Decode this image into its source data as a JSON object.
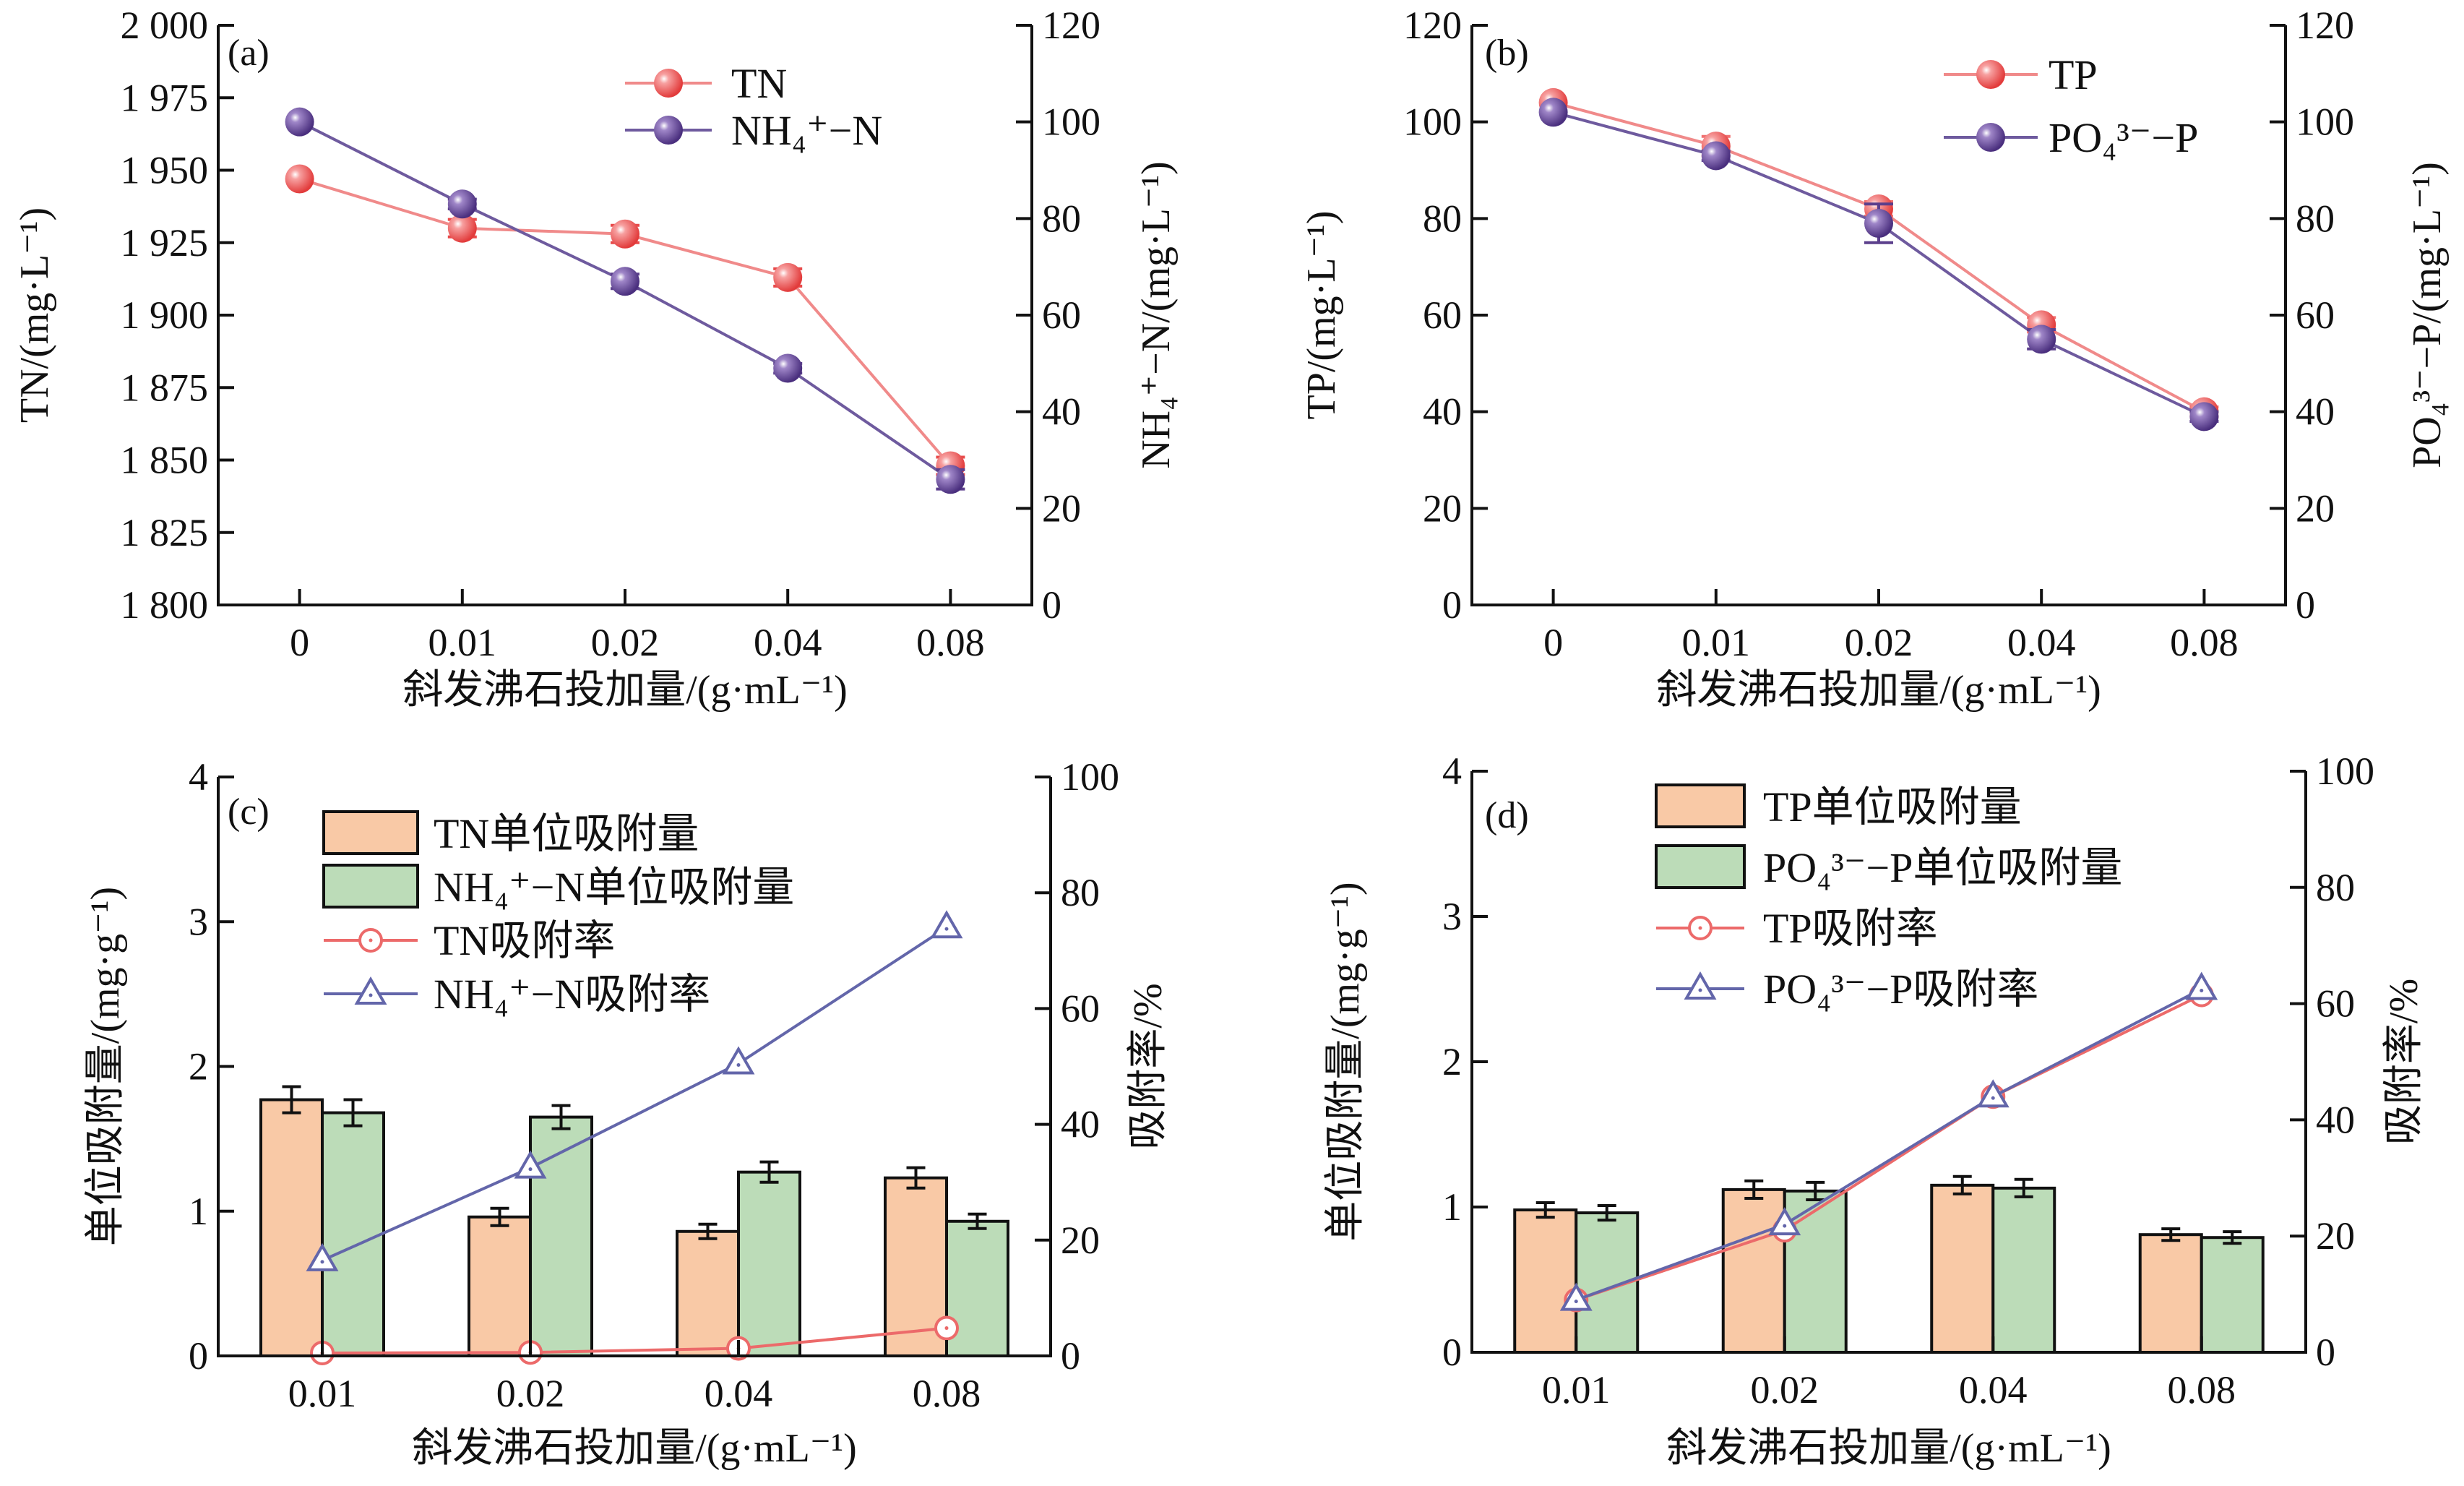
{
  "chart_data": [
    {
      "type": "line",
      "panel_label": "(a)",
      "xlabel": "斜发沸石投加量/(g·mL⁻¹)",
      "categories": [
        "0",
        "0.01",
        "0.02",
        "0.04",
        "0.08"
      ],
      "left_axis": {
        "label": "TN/(mg·L⁻¹)",
        "range": [
          1800,
          2000
        ],
        "ticks": [
          1800,
          1825,
          1850,
          1875,
          1900,
          1925,
          1950,
          1975,
          2000
        ],
        "tick_labels": [
          "1 800",
          "1 825",
          "1 850",
          "1 875",
          "1 900",
          "1 925",
          "1 950",
          "1 975",
          "2 000"
        ]
      },
      "right_axis": {
        "label": "NH₄⁺−N/(mg·L⁻¹)",
        "range": [
          0,
          120
        ],
        "ticks": [
          0,
          20,
          40,
          60,
          80,
          100,
          120
        ],
        "tick_labels": [
          "0",
          "20",
          "40",
          "60",
          "80",
          "100",
          "120"
        ]
      },
      "legend_position": "top-right",
      "series": [
        {
          "name": "TN",
          "kind": "line",
          "marker": "sphere",
          "axis": "left",
          "color": "#f08a8a",
          "marker_color": "#e84a4a",
          "values": [
            1947,
            1930,
            1928,
            1913,
            1848
          ],
          "errors": [
            0,
            3,
            3,
            3,
            3
          ]
        },
        {
          "name": "NH₄⁺−N",
          "kind": "line",
          "marker": "sphere",
          "axis": "right",
          "color": "#6e5a9e",
          "marker_color": "#5b3f8c",
          "values": [
            100,
            83,
            67,
            49,
            26
          ],
          "errors": [
            0,
            1,
            1.5,
            1,
            2
          ]
        }
      ]
    },
    {
      "type": "line",
      "panel_label": "(b)",
      "xlabel": "斜发沸石投加量/(g·mL⁻¹)",
      "categories": [
        "0",
        "0.01",
        "0.02",
        "0.04",
        "0.08"
      ],
      "left_axis": {
        "label": "TP/(mg·L⁻¹)",
        "range": [
          0,
          120
        ],
        "ticks": [
          0,
          20,
          40,
          60,
          80,
          100,
          120
        ],
        "tick_labels": [
          "0",
          "20",
          "40",
          "60",
          "80",
          "100",
          "120"
        ]
      },
      "right_axis": {
        "label": "PO₄³⁻−P/(mg·L⁻¹)",
        "range": [
          0,
          120
        ],
        "ticks": [
          0,
          20,
          40,
          60,
          80,
          100,
          120
        ],
        "tick_labels": [
          "0",
          "20",
          "40",
          "60",
          "80",
          "100",
          "120"
        ]
      },
      "legend_position": "top-right",
      "series": [
        {
          "name": "TP",
          "kind": "line",
          "marker": "sphere",
          "axis": "left",
          "color": "#f08a8a",
          "marker_color": "#f07070",
          "values": [
            104,
            95,
            82,
            58,
            40
          ],
          "errors": [
            0,
            2,
            1.5,
            1.5,
            1
          ]
        },
        {
          "name": "PO₄³⁻−P",
          "kind": "line",
          "marker": "sphere",
          "axis": "right",
          "color": "#6e5a9e",
          "marker_color": "#5b3f8c",
          "values": [
            102,
            93,
            79,
            55,
            39
          ],
          "errors": [
            0,
            1,
            4,
            2,
            1
          ]
        }
      ]
    },
    {
      "type": "bar",
      "panel_label": "(c)",
      "xlabel": "斜发沸石投加量/(g·mL⁻¹)",
      "categories": [
        "0.01",
        "0.02",
        "0.04",
        "0.08"
      ],
      "left_axis": {
        "label": "单位吸附量/(mg·g⁻¹)",
        "range": [
          0,
          4
        ],
        "ticks": [
          0,
          1,
          2,
          3,
          4
        ],
        "tick_labels": [
          "0",
          "1",
          "2",
          "3",
          "4"
        ]
      },
      "right_axis": {
        "label": "吸附率/%",
        "range": [
          0,
          100
        ],
        "ticks": [
          0,
          20,
          40,
          60,
          80,
          100
        ],
        "tick_labels": [
          "0",
          "20",
          "40",
          "60",
          "80",
          "100"
        ]
      },
      "legend_position": "top-left",
      "series": [
        {
          "name": "TN单位吸附量",
          "kind": "bar",
          "axis": "left",
          "color": "#f9c9a6",
          "values": [
            1.77,
            0.96,
            0.86,
            1.23
          ],
          "errors": [
            0.09,
            0.06,
            0.05,
            0.07
          ]
        },
        {
          "name": "NH₄⁺−N单位吸附量",
          "kind": "bar",
          "axis": "left",
          "color": "#bcdcb8",
          "values": [
            1.68,
            1.65,
            1.27,
            0.93
          ],
          "errors": [
            0.09,
            0.08,
            0.07,
            0.05
          ]
        },
        {
          "name": "TN吸附率",
          "kind": "line",
          "marker": "circle-open",
          "axis": "right",
          "color": "#ec6a6a",
          "values": [
            0.5,
            0.6,
            1.3,
            4.8
          ],
          "errors": [
            0,
            0,
            0,
            0
          ]
        },
        {
          "name": "NH₄⁺−N吸附率",
          "kind": "line",
          "marker": "triangle-open",
          "axis": "right",
          "color": "#6366aa",
          "values": [
            16.5,
            32.5,
            50.5,
            74
          ],
          "errors": [
            0,
            0,
            0,
            0
          ]
        }
      ]
    },
    {
      "type": "bar",
      "panel_label": "(d)",
      "xlabel": "斜发沸石投加量/(g·mL⁻¹)",
      "categories": [
        "0.01",
        "0.02",
        "0.04",
        "0.08"
      ],
      "left_axis": {
        "label": "单位吸附量/(mg·g⁻¹)",
        "range": [
          0,
          4
        ],
        "ticks": [
          0,
          1,
          2,
          3,
          4
        ],
        "tick_labels": [
          "0",
          "1",
          "2",
          "3",
          "4"
        ]
      },
      "right_axis": {
        "label": "吸附率/%",
        "range": [
          0,
          100
        ],
        "ticks": [
          0,
          20,
          40,
          60,
          80,
          100
        ],
        "tick_labels": [
          "0",
          "20",
          "40",
          "60",
          "80",
          "100"
        ]
      },
      "legend_position": "top",
      "series": [
        {
          "name": "TP单位吸附量",
          "kind": "bar",
          "axis": "left",
          "color": "#f9c9a6",
          "values": [
            0.98,
            1.12,
            1.15,
            0.81
          ],
          "errors": [
            0.05,
            0.06,
            0.06,
            0.04
          ]
        },
        {
          "name": "PO₄³⁻−P单位吸附量",
          "kind": "bar",
          "axis": "left",
          "color": "#bcdcb8",
          "values": [
            0.96,
            1.11,
            1.13,
            0.79
          ],
          "errors": [
            0.05,
            0.06,
            0.06,
            0.04
          ]
        },
        {
          "name": "TP吸附率",
          "kind": "line",
          "marker": "circle-open",
          "axis": "right",
          "color": "#ec6a6a",
          "values": [
            9,
            21,
            44,
            61.5
          ],
          "errors": [
            0,
            0,
            0,
            0
          ]
        },
        {
          "name": "PO₄³⁻−P吸附率",
          "kind": "line",
          "marker": "triangle-open",
          "axis": "right",
          "color": "#6366aa",
          "values": [
            9,
            22,
            44,
            62.5
          ],
          "errors": [
            0,
            0,
            0,
            0
          ]
        }
      ]
    }
  ]
}
